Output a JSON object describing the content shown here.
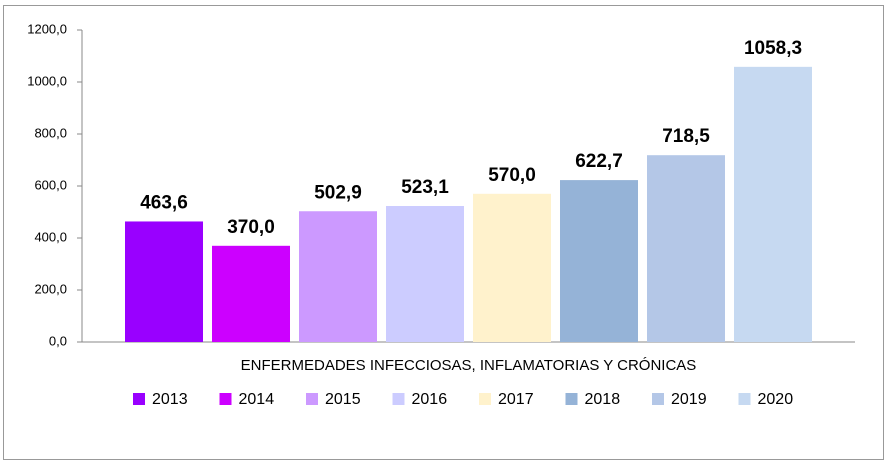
{
  "chart_data": {
    "type": "bar",
    "categories": [
      "ENFERMEDADES INFECCIOSAS, INFLAMATORIAS Y CRÓNICAS"
    ],
    "series": [
      {
        "name": "2013",
        "color": "#9900ff",
        "values": [
          463.6
        ],
        "value_labels": [
          "463,6"
        ]
      },
      {
        "name": "2014",
        "color": "#cc00ff",
        "values": [
          370.0
        ],
        "value_labels": [
          "370,0"
        ]
      },
      {
        "name": "2015",
        "color": "#cc99ff",
        "values": [
          502.9
        ],
        "value_labels": [
          "502,9"
        ]
      },
      {
        "name": "2016",
        "color": "#ccccff",
        "values": [
          523.1
        ],
        "value_labels": [
          "523,1"
        ]
      },
      {
        "name": "2017",
        "color": "#fff2cc",
        "values": [
          570.0
        ],
        "value_labels": [
          "570,0"
        ]
      },
      {
        "name": "2018",
        "color": "#95b3d7",
        "values": [
          622.7
        ],
        "value_labels": [
          "622,7"
        ]
      },
      {
        "name": "2019",
        "color": "#b4c7e7",
        "values": [
          718.5
        ],
        "value_labels": [
          "718,5"
        ]
      },
      {
        "name": "2020",
        "color": "#c6d9f1",
        "values": [
          1058.3
        ],
        "value_labels": [
          "1058,3"
        ]
      }
    ],
    "ylim": [
      0,
      1200
    ],
    "yticks": [
      {
        "value": 0,
        "label": "0,0"
      },
      {
        "value": 200,
        "label": "200,0"
      },
      {
        "value": 400,
        "label": "400,0"
      },
      {
        "value": 600,
        "label": "600,0"
      },
      {
        "value": 800,
        "label": "800,0"
      },
      {
        "value": 1000,
        "label": "1000,0"
      },
      {
        "value": 1200,
        "label": "1200,0"
      }
    ],
    "grid": false
  }
}
